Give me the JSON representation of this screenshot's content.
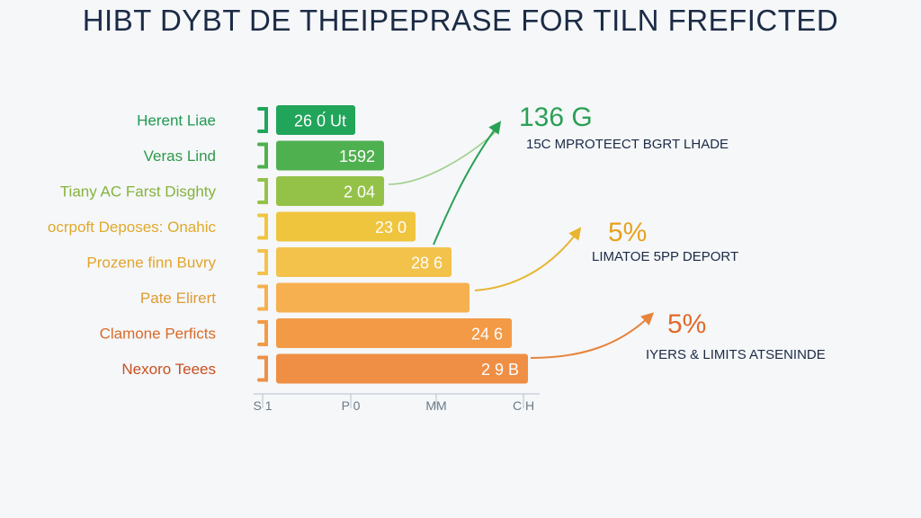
{
  "chart_data": {
    "type": "bar",
    "orientation": "horizontal",
    "title": "HIBT DYBT DE THEIPEPRASE FOR TILN FREFICTED",
    "categories": [
      "Herent Liae",
      "Veras Lind",
      "Tiany AC Farst Disghty",
      "ocrpoft Deposes: Onahic",
      "Prozene finn Buvry",
      "Pate Elirert",
      "Clamone Perficts",
      "Nexoro Teees"
    ],
    "values": [
      88,
      120,
      120,
      155,
      195,
      215,
      262,
      280
    ],
    "value_labels": [
      "26 0́ Ut",
      "1592",
      "2 04",
      "23 0",
      "28 6",
      "",
      "24 6",
      "2 9 B"
    ],
    "colors": [
      "#21a55a",
      "#4fb04f",
      "#94c248",
      "#f0c53e",
      "#f3c24a",
      "#f6b04f",
      "#f39a47",
      "#ef8f45"
    ],
    "label_colors": [
      "#1f9a52",
      "#2f9a4a",
      "#86b23c",
      "#e0a92a",
      "#e3a42c",
      "#e09a32",
      "#d96a2a",
      "#c9501f"
    ],
    "x_ticks": [
      "S 1",
      "P 0",
      "MM",
      "C H"
    ],
    "xlim": [
      0,
      300
    ],
    "callouts": [
      {
        "value": "136 G",
        "text": "15C MPROTEECT BGRT LHADE",
        "color": "#2aa055"
      },
      {
        "value": "5%",
        "text": "LIMATOE 5PP DEPORT",
        "color": "#e8a21c"
      },
      {
        "value": "5%",
        "text": "IYERS & LIMITS ATSENINDE",
        "color": "#e26a2a"
      }
    ]
  }
}
